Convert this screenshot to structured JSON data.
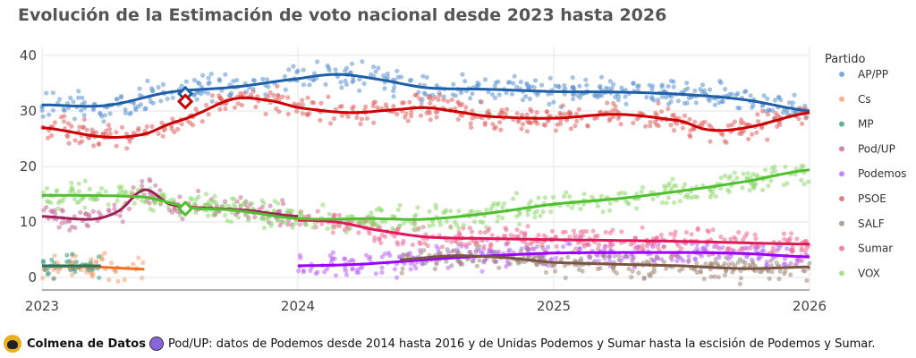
{
  "title": "Evolución de la Estimación de voto nacional desde 2023 hasta 2026",
  "chart_data": {
    "type": "scatter+line",
    "title": "Evolución de la Estimación de voto nacional desde 2023 hasta 2026",
    "xlabel": "",
    "ylabel": "",
    "xlim": [
      2023,
      2026
    ],
    "ylim": [
      0,
      40
    ],
    "x_ticks": [
      "2023",
      "2024",
      "2025",
      "2026"
    ],
    "y_ticks": [
      "0",
      "10",
      "20",
      "30",
      "40"
    ],
    "grid": true,
    "legend_title": "Partido",
    "legend_position": "right",
    "series": [
      {
        "name": "AP/PP",
        "color": "#1f5fa8",
        "dot_color": "#5b93cf",
        "x": [
          2023.0,
          2023.25,
          2023.5,
          2023.75,
          2024.0,
          2024.15,
          2024.3,
          2024.5,
          2024.75,
          2025.0,
          2025.25,
          2025.5,
          2025.75,
          2026.0
        ],
        "y": [
          31.1,
          31.0,
          33.4,
          34.3,
          35.8,
          36.6,
          35.8,
          34.2,
          33.9,
          33.5,
          33.4,
          33.0,
          32.0,
          30.0
        ],
        "result": {
          "x": 2023.56,
          "y": 33.1
        }
      },
      {
        "name": "Cs",
        "color": "#f07020",
        "dot_color": "#f4a070",
        "x": [
          2023.0,
          2023.2,
          2023.4
        ],
        "y": [
          2.0,
          1.9,
          1.5
        ]
      },
      {
        "name": "MP",
        "color": "#1a7a60",
        "dot_color": "#3a9a80",
        "x": [
          2023.0,
          2023.12,
          2023.23
        ],
        "y": [
          2.1,
          2.1,
          2.1
        ]
      },
      {
        "name": "Pod/UP",
        "color": "#a0205a",
        "dot_color": "#c46a95",
        "x": [
          2023.0,
          2023.2,
          2023.3,
          2023.4,
          2023.5,
          2023.6,
          2023.8,
          2024.0
        ],
        "y": [
          11.0,
          10.5,
          12.0,
          15.8,
          13.2,
          12.6,
          12.1,
          11.0
        ]
      },
      {
        "name": "Podemos",
        "color": "#9b00ff",
        "dot_color": "#b866ff",
        "x": [
          2024.0,
          2024.25,
          2024.5,
          2024.75,
          2025.0,
          2025.5,
          2025.75,
          2026.0
        ],
        "y": [
          2.1,
          2.4,
          3.2,
          3.9,
          4.4,
          4.5,
          4.3,
          3.7
        ]
      },
      {
        "name": "PSOE",
        "color": "#cc0000",
        "dot_color": "#e06060",
        "x": [
          2023.0,
          2023.25,
          2023.4,
          2023.5,
          2023.58,
          2023.75,
          2023.9,
          2024.0,
          2024.2,
          2024.4,
          2024.5,
          2024.6,
          2024.75,
          2025.0,
          2025.25,
          2025.5,
          2025.6,
          2025.75,
          2026.0
        ],
        "y": [
          27.0,
          25.3,
          25.8,
          27.7,
          29.0,
          32.2,
          31.8,
          30.6,
          29.7,
          30.3,
          30.6,
          30.0,
          29.0,
          28.7,
          29.4,
          28.2,
          26.6,
          27.0,
          29.7
        ],
        "result": {
          "x": 2023.56,
          "y": 31.7
        }
      },
      {
        "name": "SALF",
        "color": "#7a5540",
        "dot_color": "#a08878",
        "x": [
          2024.4,
          2024.6,
          2024.8,
          2025.0,
          2025.5,
          2025.75,
          2026.0
        ],
        "y": [
          3.2,
          3.9,
          3.6,
          2.7,
          2.1,
          1.6,
          1.9
        ]
      },
      {
        "name": "Sumar",
        "color": "#e0185a",
        "dot_color": "#ec6a8f",
        "x": [
          2024.0,
          2024.15,
          2024.3,
          2024.5,
          2024.75,
          2025.0,
          2025.5,
          2026.0
        ],
        "y": [
          10.3,
          10.0,
          8.6,
          7.3,
          7.0,
          6.8,
          6.5,
          6.0
        ]
      },
      {
        "name": "VOX",
        "color": "#50c030",
        "dot_color": "#8fd870",
        "x": [
          2023.0,
          2023.4,
          2023.58,
          2023.75,
          2024.0,
          2024.3,
          2024.5,
          2024.75,
          2025.0,
          2025.25,
          2025.5,
          2025.75,
          2026.0
        ],
        "y": [
          14.8,
          14.5,
          12.6,
          12.1,
          10.6,
          10.6,
          10.5,
          11.6,
          13.2,
          14.2,
          15.6,
          17.3,
          19.4
        ],
        "result": {
          "x": 2023.56,
          "y": 12.4
        }
      }
    ]
  },
  "footer": {
    "brand": "Colmena de Datos",
    "note": "Pod/UP: datos de Podemos desde 2014 hasta 2016 y de Unidas Podemos y Sumar hasta la escisión de Podemos y Sumar."
  }
}
